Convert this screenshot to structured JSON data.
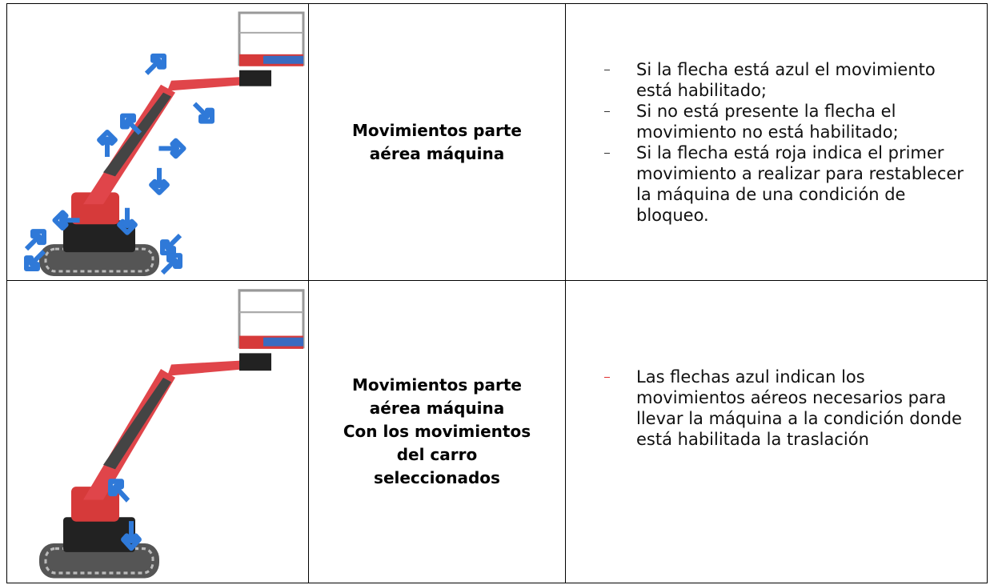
{
  "table": {
    "rows": [
      {
        "label": [
          "Movimientos parte",
          "aérea máquina"
        ],
        "items": [
          "Si la flecha está azul el movimiento está habilitado;",
          "Si no está presente la flecha el movimiento no está habilitado;",
          "Si la flecha está roja indica el primer movimiento a realizar para restablecer la máquina de una condición de bloqueo."
        ]
      },
      {
        "label": [
          "Movimientos parte",
          "aérea máquina",
          "Con los movimientos",
          "del carro",
          "seleccionados"
        ],
        "items": [
          "Las flechas azul indican los movimientos aéreos necesarios para llevar la máquina a la condición donde está habilitada la traslación"
        ]
      }
    ]
  }
}
